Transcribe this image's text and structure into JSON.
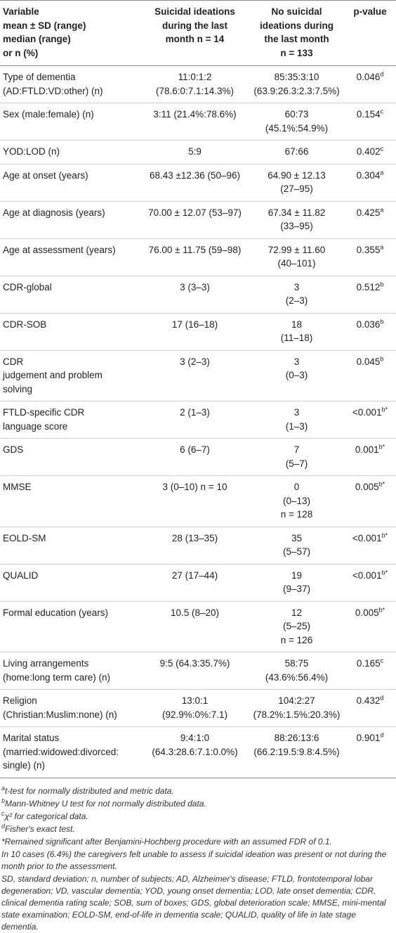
{
  "table": {
    "header": [
      [
        "Variable",
        "mean ± SD (range)",
        "median (range)",
        "or n (%)"
      ],
      [
        "Suicidal ideations",
        "during the last",
        "month  n = 14"
      ],
      [
        "No suicidal",
        "ideations during",
        "the last month",
        "n = 133"
      ],
      [
        "p-value"
      ]
    ],
    "rows": [
      [
        [
          "Type of dementia",
          "(AD:FTLD:VD:other) (n)"
        ],
        [
          "11:0:1:2",
          "(78.6:0:7.1:14.3%)"
        ],
        [
          "85:35:3:10",
          "(63.9:26.3:2.3:7.5%)"
        ],
        {
          "value": "0.046",
          "sup": "d"
        }
      ],
      [
        [
          "Sex (male:female) (n)"
        ],
        [
          "3:11 (21.4%:78.6%)"
        ],
        [
          "60:73",
          "(45.1%:54.9%)"
        ],
        {
          "value": "0.154",
          "sup": "c"
        }
      ],
      [
        [
          "YOD:LOD (n)"
        ],
        [
          "5:9"
        ],
        [
          "67:66"
        ],
        {
          "value": "0.402",
          "sup": "c"
        }
      ],
      [
        [
          "Age at onset (years)"
        ],
        [
          "68.43 ±12.36 (50–96)"
        ],
        [
          "64.90 ± 12.13",
          "(27–95)"
        ],
        {
          "value": "0.304",
          "sup": "a"
        }
      ],
      [
        [
          "Age at diagnosis (years)"
        ],
        [
          "70.00 ± 12.07 (53–97)"
        ],
        [
          "67.34 ± 11.82",
          "(33–95)"
        ],
        {
          "value": "0.425",
          "sup": "a"
        }
      ],
      [
        [
          "Age at assessment (years)"
        ],
        [
          "76.00 ± 11.75 (59–98)"
        ],
        [
          "72.99 ± 11.60",
          "(40–101)"
        ],
        {
          "value": "0.355",
          "sup": "a"
        }
      ],
      [
        [
          "CDR-global"
        ],
        [
          "3 (3–3)"
        ],
        [
          "3",
          "(2–3)"
        ],
        {
          "value": "0.512",
          "sup": "b"
        }
      ],
      [
        [
          "CDR-SOB"
        ],
        [
          "17 (16–18)"
        ],
        [
          "18",
          "(11–18)"
        ],
        {
          "value": "0.036",
          "sup": "b"
        }
      ],
      [
        [
          "CDR",
          "judgement and problem",
          "solving"
        ],
        [
          "3 (2–3)"
        ],
        [
          "3",
          "(0–3)"
        ],
        {
          "value": "0.045",
          "sup": "b"
        }
      ],
      [
        [
          "FTLD-specific CDR",
          "language score"
        ],
        [
          "2 (1–3)"
        ],
        [
          "3",
          "(1–3)"
        ],
        {
          "value": "<0.001",
          "sup": "b*"
        }
      ],
      [
        [
          "GDS"
        ],
        [
          "6 (6–7)"
        ],
        [
          "7",
          "(5–7)"
        ],
        {
          "value": "0.001",
          "sup": "b*"
        }
      ],
      [
        [
          "MMSE"
        ],
        [
          "3 (0–10) n = 10"
        ],
        [
          "0",
          "(0–13)",
          "n = 128"
        ],
        {
          "value": "0.005",
          "sup": "b*"
        }
      ],
      [
        [
          "EOLD-SM"
        ],
        [
          "28 (13–35)"
        ],
        [
          "35",
          "(5–57)"
        ],
        {
          "value": "<0.001",
          "sup": "b*"
        }
      ],
      [
        [
          "QUALID"
        ],
        [
          "27 (17–44)"
        ],
        [
          "19",
          "(9–37)"
        ],
        {
          "value": "<0.001",
          "sup": "b*"
        }
      ],
      [
        [
          "Formal education (years)"
        ],
        [
          "10.5 (8–20)"
        ],
        [
          "12",
          "(5–25)",
          "n = 126"
        ],
        {
          "value": "0.005",
          "sup": "b*"
        }
      ],
      [
        [
          "Living arrangements",
          "(home:long term care) (n)"
        ],
        [
          "9:5 (64.3:35.7%)"
        ],
        [
          "58:75",
          "(43.6%:56.4%)"
        ],
        {
          "value": "0.165",
          "sup": "c"
        }
      ],
      [
        [
          "Religion",
          "(Christian:Muslim:none) (n)"
        ],
        [
          "13:0:1",
          "(92.9%:0%:7.1)"
        ],
        [
          "104:2:27",
          "(78.2%:1.5%:20.3%)"
        ],
        {
          "value": "0.432",
          "sup": "d"
        }
      ],
      [
        [
          "Marital status",
          "(married:widowed:divorced:",
          "single) (n)"
        ],
        [
          "9:4:1:0",
          "(64.3:28.6:7.1:0.0%)"
        ],
        [
          "88:26:13:6",
          "(66.2:19.5:9.8:4.5%)"
        ],
        {
          "value": "0.901",
          "sup": "d"
        }
      ]
    ]
  },
  "footnotes": [
    {
      "mark": "a",
      "text": "t-test for normally distributed and metric data."
    },
    {
      "mark": "b",
      "text": "Mann-Whitney U test for not normally distributed data."
    },
    {
      "mark": "c",
      "text": "χ² for categorical data."
    },
    {
      "mark": "d",
      "text": "Fisher's exact test."
    },
    {
      "text": "*Remained significant after Benjamini-Hochberg procedure with an assumed FDR of 0.1."
    },
    {
      "text": "In 10 cases (6.4%) the caregivers felt unable to assess if suicidal ideation was present or not during the month prior to the assessment."
    },
    {
      "text": "SD, standard deviation; n, number of subjects; AD, Alzheimer's disease; FTLD, frontotemporal lobar degeneration; VD, vascular dementia; YOD, young onset dementia; LOD, late onset dementia; CDR, clinical dementia rating scale; SOB, sum of boxes; GDS, global deterioration scale; MMSE, mini-mental state examination; EOLD-SM, end-of-life in dementia scale; QUALID, quality of life in late stage dementia."
    }
  ]
}
